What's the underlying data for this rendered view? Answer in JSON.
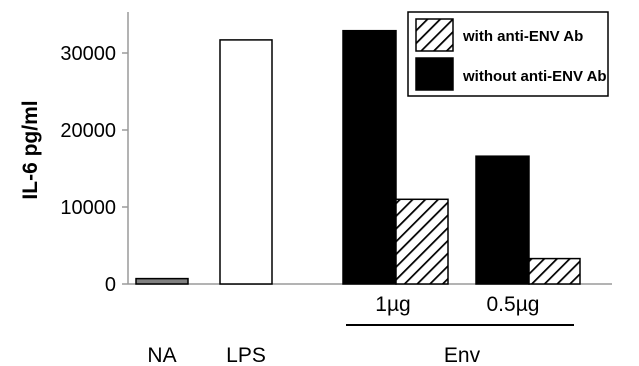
{
  "chart_data": {
    "type": "bar",
    "ylabel": "IL-6 pg/ml",
    "ylim": [
      0,
      35000
    ],
    "yticks": [
      0,
      10000,
      20000,
      30000
    ],
    "grid": false,
    "legend_position": "top-right",
    "legend": [
      {
        "label": "with anti-ENV Ab",
        "fill": "hatched"
      },
      {
        "label": "without anti-ENV Ab",
        "fill": "#000000"
      }
    ],
    "bars": [
      {
        "category": "NA",
        "value": 700,
        "fill": "#808080"
      },
      {
        "category": "LPS",
        "value": 31700,
        "fill": "#ffffff"
      },
      {
        "category": "1µg",
        "series": "without anti-ENV Ab",
        "value": 32900,
        "fill": "#000000"
      },
      {
        "category": "1µg",
        "series": "with anti-ENV Ab",
        "value": 11000,
        "fill": "hatched"
      },
      {
        "category": "0.5µg",
        "series": "without anti-ENV Ab",
        "value": 16600,
        "fill": "#000000"
      },
      {
        "category": "0.5µg",
        "series": "with anti-ENV Ab",
        "value": 3300,
        "fill": "hatched"
      }
    ],
    "group_labels": [
      "1µg",
      "0.5µg"
    ],
    "category_labels": [
      "NA",
      "LPS",
      "Env"
    ]
  }
}
